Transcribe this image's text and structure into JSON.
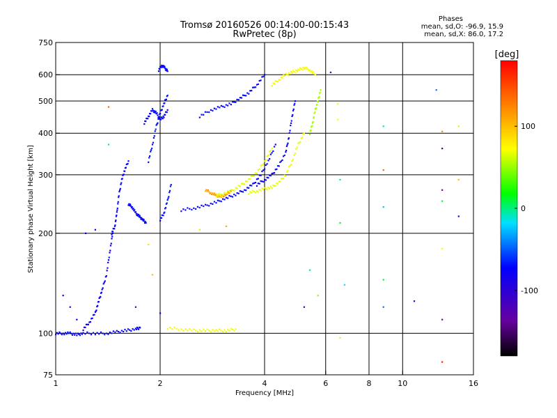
{
  "chart_data": {
    "type": "scatter",
    "title": "Tromsø 20160526 00:14:00-00:15:43",
    "subtitle": "RwPretec (8p)",
    "xlabel": "Frequency [MHz]",
    "ylabel": "Stationary phase Virtual Height [km]",
    "x_scale": "log",
    "y_scale": "log",
    "xlim": [
      1,
      16
    ],
    "ylim": [
      75,
      750
    ],
    "x_ticks": [
      1,
      2,
      4,
      6,
      8,
      10,
      16
    ],
    "x_tick_labels": [
      "1",
      "2",
      "4",
      "6",
      "8",
      "10",
      "16"
    ],
    "y_ticks": [
      75,
      100,
      200,
      300,
      400,
      500,
      600,
      750
    ],
    "y_tick_labels": [
      "75",
      "100",
      "200",
      "300",
      "400",
      "500",
      "600",
      "750"
    ],
    "grid": true,
    "gridlines_x": [
      2,
      4,
      6,
      8,
      10
    ],
    "gridlines_y": [
      100,
      200,
      300,
      400,
      500,
      600
    ],
    "colorbar": {
      "label": "[deg]",
      "range": [
        -180,
        180
      ],
      "ticks": [
        100,
        0,
        -100
      ],
      "tick_labels": [
        "100",
        "0",
        "-100"
      ]
    },
    "stats": {
      "heading": "Phases",
      "line_o": "mean, sd,O: -96.9, 15.9",
      "line_x": "mean, sd,X:  86.0, 17.2"
    },
    "traces": [
      {
        "f": [
          1.0,
          1.05,
          1.1,
          1.15,
          1.2,
          1.3,
          1.4,
          1.5,
          1.6,
          1.7,
          1.75
        ],
        "h": [
          100,
          100,
          100,
          99,
          100,
          100,
          100,
          101,
          102,
          103,
          104
        ],
        "phase": -100
      },
      {
        "f": [
          1.2,
          1.25,
          1.3,
          1.33,
          1.36,
          1.4,
          1.43,
          1.46
        ],
        "h": [
          103,
          108,
          115,
          125,
          135,
          150,
          175,
          200
        ],
        "phase": -105
      },
      {
        "f": [
          1.45,
          1.48,
          1.5,
          1.52,
          1.55,
          1.58,
          1.62
        ],
        "h": [
          200,
          210,
          230,
          260,
          290,
          310,
          330
        ],
        "phase": -100
      },
      {
        "f": [
          1.62,
          1.66,
          1.7,
          1.74,
          1.78,
          1.82
        ],
        "h": [
          245,
          240,
          230,
          225,
          220,
          215
        ],
        "phase": -100
      },
      {
        "f": [
          1.8,
          1.85,
          1.9,
          1.95,
          2.0,
          2.05,
          2.1
        ],
        "h": [
          430,
          450,
          470,
          460,
          440,
          450,
          470
        ],
        "phase": -100
      },
      {
        "f": [
          1.85,
          1.9,
          1.95,
          2.0,
          2.05,
          2.1
        ],
        "h": [
          330,
          370,
          420,
          460,
          490,
          520
        ],
        "phase": -95
      },
      {
        "f": [
          1.98,
          2.02,
          2.06,
          2.1
        ],
        "h": [
          620,
          640,
          630,
          615
        ],
        "phase": -100
      },
      {
        "f": [
          2.0,
          2.05,
          2.1,
          2.15
        ],
        "h": [
          220,
          230,
          250,
          280
        ],
        "phase": -95
      },
      {
        "f": [
          2.1,
          2.3,
          2.5,
          2.7,
          2.9,
          3.1,
          3.3
        ],
        "h": [
          104,
          103,
          102,
          102,
          102,
          102,
          103
        ],
        "phase": 90
      },
      {
        "f": [
          2.3,
          2.5,
          2.7,
          2.9,
          3.1,
          3.3,
          3.5,
          3.7,
          3.9,
          4.1,
          4.3
        ],
        "h": [
          235,
          238,
          242,
          248,
          255,
          262,
          270,
          280,
          300,
          330,
          370
        ],
        "phase": -100
      },
      {
        "f": [
          2.7,
          2.8,
          2.9,
          3.0,
          3.1,
          3.2
        ],
        "h": [
          270,
          265,
          260,
          258,
          262,
          268
        ],
        "phase": 130
      },
      {
        "f": [
          2.9,
          3.0,
          3.2,
          3.4,
          3.6,
          3.8,
          4.0,
          4.2
        ],
        "h": [
          260,
          262,
          268,
          278,
          290,
          305,
          330,
          360
        ],
        "phase": 80
      },
      {
        "f": [
          3.6,
          3.8,
          4.0,
          4.2,
          4.4,
          4.6,
          4.8,
          5.0,
          5.2
        ],
        "h": [
          265,
          268,
          272,
          275,
          285,
          300,
          330,
          370,
          400
        ],
        "phase": 85
      },
      {
        "f": [
          3.8,
          4.0,
          4.2,
          4.4,
          4.6,
          4.7,
          4.8,
          4.9
        ],
        "h": [
          280,
          290,
          300,
          320,
          350,
          390,
          450,
          500
        ],
        "phase": -100
      },
      {
        "f": [
          2.6,
          2.8,
          3.0,
          3.2,
          3.4,
          3.6,
          3.8,
          4.0
        ],
        "h": [
          450,
          470,
          480,
          490,
          510,
          530,
          560,
          600
        ],
        "phase": -100
      },
      {
        "f": [
          4.2,
          4.4,
          4.6,
          4.8,
          5.0,
          5.2,
          5.4,
          5.6
        ],
        "h": [
          560,
          580,
          600,
          610,
          620,
          630,
          620,
          600
        ],
        "phase": 95
      },
      {
        "f": [
          5.4,
          5.5,
          5.6,
          5.7,
          5.8
        ],
        "h": [
          400,
          430,
          470,
          500,
          540
        ],
        "phase": 50
      }
    ],
    "scattered_points": [
      {
        "f": 1.05,
        "h": 130,
        "phase": -100
      },
      {
        "f": 1.1,
        "h": 120,
        "phase": -100
      },
      {
        "f": 1.15,
        "h": 110,
        "phase": -100
      },
      {
        "f": 1.22,
        "h": 200,
        "phase": -100
      },
      {
        "f": 1.3,
        "h": 205,
        "phase": -100
      },
      {
        "f": 1.42,
        "h": 480,
        "phase": 150
      },
      {
        "f": 1.42,
        "h": 370,
        "phase": -10
      },
      {
        "f": 1.7,
        "h": 120,
        "phase": -120
      },
      {
        "f": 1.85,
        "h": 185,
        "phase": 110
      },
      {
        "f": 1.9,
        "h": 150,
        "phase": 120
      },
      {
        "f": 2.0,
        "h": 115,
        "phase": -95
      },
      {
        "f": 2.6,
        "h": 205,
        "phase": 60
      },
      {
        "f": 3.1,
        "h": 210,
        "phase": 130
      },
      {
        "f": 5.2,
        "h": 120,
        "phase": -115
      },
      {
        "f": 5.4,
        "h": 155,
        "phase": -10
      },
      {
        "f": 5.7,
        "h": 130,
        "phase": 40
      },
      {
        "f": 6.2,
        "h": 610,
        "phase": -130
      },
      {
        "f": 6.5,
        "h": 490,
        "phase": 80
      },
      {
        "f": 6.5,
        "h": 440,
        "phase": 95
      },
      {
        "f": 6.6,
        "h": 290,
        "phase": -10
      },
      {
        "f": 6.6,
        "h": 215,
        "phase": -5
      },
      {
        "f": 6.8,
        "h": 140,
        "phase": -20
      },
      {
        "f": 6.6,
        "h": 97,
        "phase": 60
      },
      {
        "f": 8.8,
        "h": 420,
        "phase": -10
      },
      {
        "f": 8.8,
        "h": 310,
        "phase": 150
      },
      {
        "f": 8.8,
        "h": 240,
        "phase": -30
      },
      {
        "f": 8.8,
        "h": 145,
        "phase": -5
      },
      {
        "f": 8.8,
        "h": 120,
        "phase": -60
      },
      {
        "f": 10.8,
        "h": 125,
        "phase": -110
      },
      {
        "f": 12.5,
        "h": 540,
        "phase": -60
      },
      {
        "f": 13.0,
        "h": 405,
        "phase": 140
      },
      {
        "f": 13.0,
        "h": 360,
        "phase": -150
      },
      {
        "f": 13.0,
        "h": 270,
        "phase": -140
      },
      {
        "f": 13.0,
        "h": 250,
        "phase": -5
      },
      {
        "f": 13.0,
        "h": 180,
        "phase": 90
      },
      {
        "f": 13.0,
        "h": 110,
        "phase": -140
      },
      {
        "f": 13.0,
        "h": 82,
        "phase": 170
      },
      {
        "f": 14.5,
        "h": 420,
        "phase": 60
      },
      {
        "f": 14.5,
        "h": 290,
        "phase": 120
      },
      {
        "f": 14.5,
        "h": 225,
        "phase": -100
      }
    ]
  }
}
